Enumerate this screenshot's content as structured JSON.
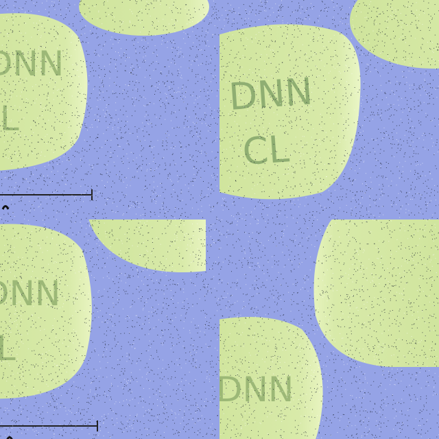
{
  "image": {
    "description_icon": "pill-collage-icon",
    "pill_imprint_top": "DNN",
    "pill_imprint_bottom": "CL",
    "colors": {
      "background": "#95a3e6",
      "pill_fill": "#d5e8a6",
      "pill_highlight": "#e6f3bd",
      "pill_shadow": "#b9cf86",
      "imprint": "#8fae72",
      "scale_bar": "#222222"
    }
  }
}
